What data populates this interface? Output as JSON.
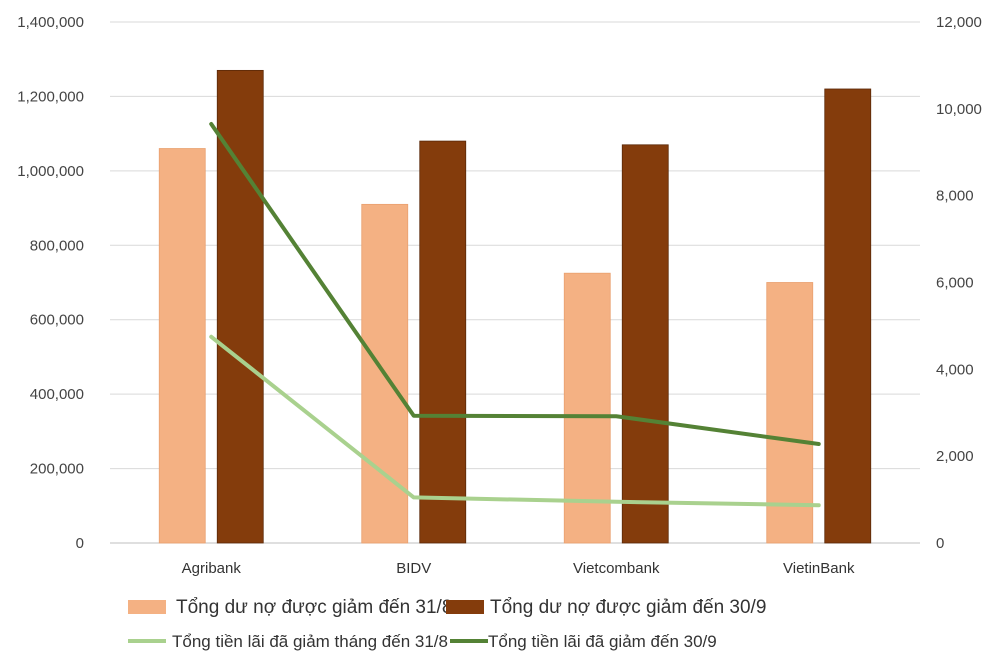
{
  "chart_data": {
    "type": "bar",
    "categories": [
      "Agribank",
      "BIDV",
      "Vietcombank",
      "VietinBank"
    ],
    "series": [
      {
        "name": "Tổng dư nợ được giảm đến 31/8",
        "type": "bar",
        "axis": "left",
        "color": "#F4B183",
        "values": [
          1060000,
          910000,
          725000,
          700000
        ]
      },
      {
        "name": "Tổng dư nợ được giảm đến 30/9",
        "type": "bar",
        "axis": "left",
        "color": "#843C0C",
        "values": [
          1270000,
          1080000,
          1070000,
          1220000
        ]
      },
      {
        "name": "Tổng tiền lãi đã giảm tháng đến 31/8",
        "type": "line",
        "axis": "right",
        "color": "#A9D18E",
        "values": [
          4750,
          1050,
          950,
          870
        ]
      },
      {
        "name": "Tổng tiền lãi đã giảm đến 30/9",
        "type": "line",
        "axis": "right",
        "color": "#548235",
        "values": [
          9650,
          2930,
          2920,
          2280
        ]
      }
    ],
    "y_left": {
      "min": 0,
      "max": 1400000,
      "step": 200000,
      "tick_labels": [
        "0",
        "200,000",
        "400,000",
        "600,000",
        "800,000",
        "1,000,000",
        "1,200,000",
        "1,400,000"
      ]
    },
    "y_right": {
      "min": 0,
      "max": 12000,
      "step": 2000,
      "tick_labels": [
        "0",
        "2,000",
        "4,000",
        "6,000",
        "8,000",
        "10,000",
        "12,000"
      ]
    },
    "grid": true,
    "legend_position": "bottom",
    "gridline_color": "#D9D9D9"
  }
}
